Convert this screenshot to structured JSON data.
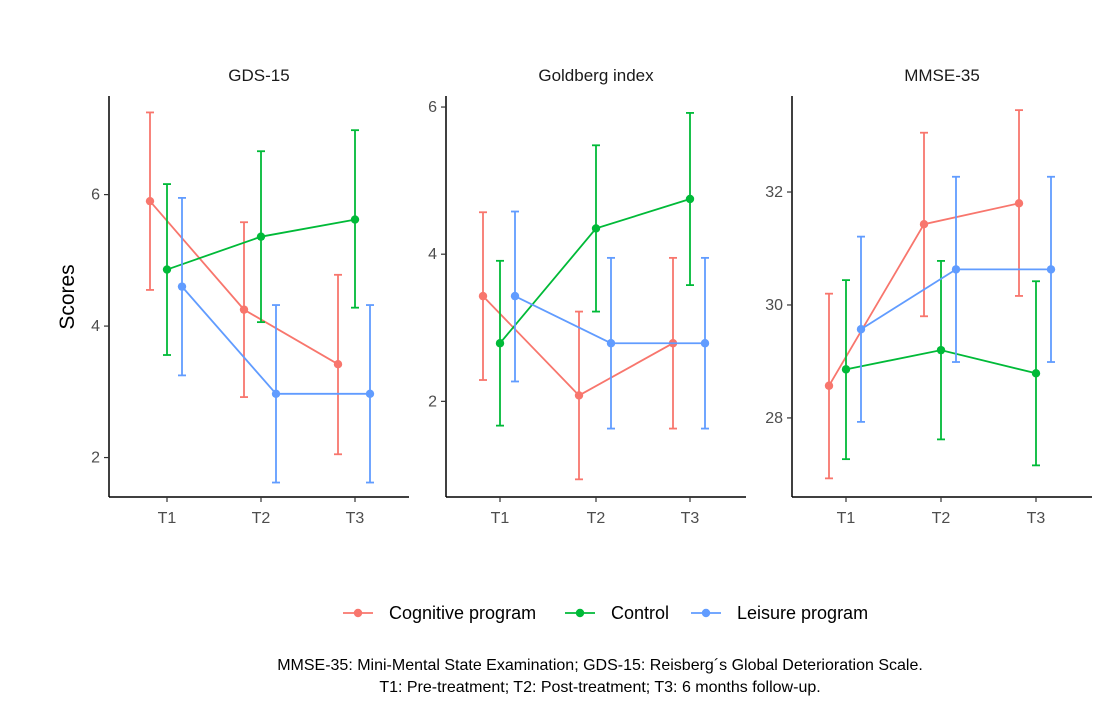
{
  "chart_data": {
    "type": "line",
    "ylabel": "Scores",
    "xlabel": "",
    "categories": [
      "T1",
      "T2",
      "T3"
    ],
    "series_colors": {
      "Cognitive program": "#F8766D",
      "Control": "#00BA38",
      "Leisure program": "#619CFF"
    },
    "panels": [
      {
        "title": "GDS-15",
        "ylim": [
          1.4,
          7.5
        ],
        "yticks": [
          2,
          4,
          6
        ],
        "series": [
          {
            "name": "Cognitive program",
            "values": [
              5.9,
              4.25,
              3.42
            ],
            "lower": [
              4.55,
              2.92,
              2.05
            ],
            "upper": [
              7.25,
              5.58,
              4.78
            ]
          },
          {
            "name": "Control",
            "values": [
              4.86,
              5.36,
              5.62
            ],
            "lower": [
              3.56,
              4.06,
              4.28
            ],
            "upper": [
              6.16,
              6.66,
              6.98
            ]
          },
          {
            "name": "Leisure program",
            "values": [
              4.6,
              2.97,
              2.97
            ],
            "lower": [
              3.25,
              1.62,
              1.62
            ],
            "upper": [
              5.95,
              4.32,
              4.32
            ]
          }
        ]
      },
      {
        "title": "Goldberg index",
        "ylim": [
          0.7,
          6.15
        ],
        "yticks": [
          2,
          4,
          6
        ],
        "series": [
          {
            "name": "Cognitive program",
            "values": [
              3.43,
              2.08,
              2.79
            ],
            "lower": [
              2.29,
              0.94,
              1.63
            ],
            "upper": [
              4.57,
              3.22,
              3.95
            ]
          },
          {
            "name": "Control",
            "values": [
              2.79,
              4.35,
              4.75
            ],
            "lower": [
              1.67,
              3.22,
              3.58
            ],
            "upper": [
              3.91,
              5.48,
              5.92
            ]
          },
          {
            "name": "Leisure program",
            "values": [
              3.43,
              2.79,
              2.79
            ],
            "lower": [
              2.27,
              1.63,
              1.63
            ],
            "upper": [
              4.58,
              3.95,
              3.95
            ]
          }
        ]
      },
      {
        "title": "MMSE-35",
        "ylim": [
          26.6,
          33.7
        ],
        "yticks": [
          28,
          30,
          32
        ],
        "series": [
          {
            "name": "Cognitive program",
            "values": [
              28.57,
              31.43,
              31.8
            ],
            "lower": [
              26.93,
              29.8,
              30.16
            ],
            "upper": [
              30.2,
              33.05,
              33.45
            ]
          },
          {
            "name": "Control",
            "values": [
              28.86,
              29.2,
              28.79
            ],
            "lower": [
              27.27,
              27.62,
              27.16
            ],
            "upper": [
              30.44,
              30.78,
              30.42
            ]
          },
          {
            "name": "Leisure program",
            "values": [
              29.57,
              30.63,
              30.63
            ],
            "lower": [
              27.93,
              28.99,
              28.99
            ],
            "upper": [
              31.21,
              32.27,
              32.27
            ]
          }
        ]
      }
    ],
    "legend": {
      "position": "bottom",
      "entries": [
        "Cognitive program",
        "Control",
        "Leisure program"
      ]
    },
    "caption": [
      "MMSE-35: Mini-Mental State Examination; GDS-15: Reisberg´s Global Deterioration Scale.",
      "T1: Pre-treatment; T2: Post-treatment; T3: 6 months follow-up."
    ]
  }
}
